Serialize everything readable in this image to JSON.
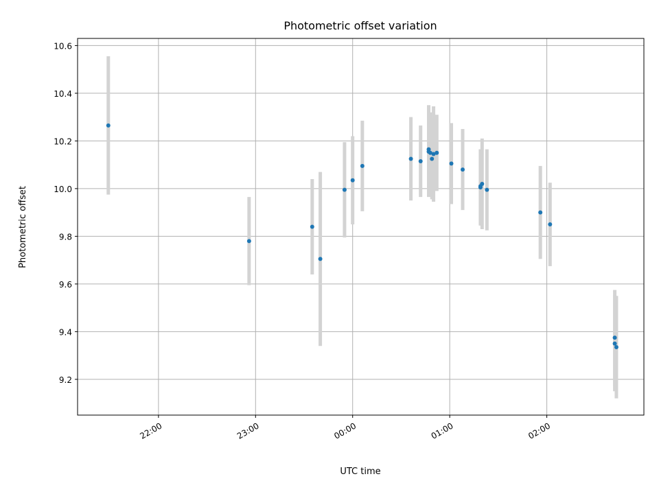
{
  "chart_data": {
    "type": "scatter",
    "title": "Photometric offset variation",
    "xlabel": "UTC time",
    "ylabel": "Photometric offset",
    "x_ticks": [
      "22:00",
      "23:00",
      "00:00",
      "01:00",
      "02:00"
    ],
    "y_ticks": [
      "9.2",
      "9.4",
      "9.6",
      "9.8",
      "10.0",
      "10.2",
      "10.4",
      "10.6"
    ],
    "xlim": [
      "21:10",
      "03:00"
    ],
    "ylim": [
      9.05,
      10.63
    ],
    "grid": true,
    "error_bar_color": "#d3d3d3",
    "point_color": "#1f77b4",
    "points": [
      {
        "x": "21:29",
        "y": 10.265,
        "err": 0.29
      },
      {
        "x": "22:56",
        "y": 9.78,
        "err": 0.185
      },
      {
        "x": "23:35",
        "y": 9.84,
        "err": 0.2
      },
      {
        "x": "23:40",
        "y": 9.705,
        "err": 0.365
      },
      {
        "x": "23:55",
        "y": 9.995,
        "err": 0.2
      },
      {
        "x": "00:00",
        "y": 10.035,
        "err": 0.185
      },
      {
        "x": "00:06",
        "y": 10.095,
        "err": 0.19
      },
      {
        "x": "00:36",
        "y": 10.125,
        "err": 0.175
      },
      {
        "x": "00:42",
        "y": 10.115,
        "err": 0.15
      },
      {
        "x": "00:47",
        "y": 10.165,
        "err": 0.185
      },
      {
        "x": "00:47",
        "y": 10.155,
        "err": 0.19
      },
      {
        "x": "00:48",
        "y": 10.15,
        "err": 0.17
      },
      {
        "x": "00:49",
        "y": 10.125,
        "err": 0.17
      },
      {
        "x": "00:50",
        "y": 10.145,
        "err": 0.2
      },
      {
        "x": "00:52",
        "y": 10.15,
        "err": 0.16
      },
      {
        "x": "01:01",
        "y": 10.105,
        "err": 0.17
      },
      {
        "x": "01:08",
        "y": 10.08,
        "err": 0.17
      },
      {
        "x": "01:19",
        "y": 10.005,
        "err": 0.16
      },
      {
        "x": "01:19",
        "y": 10.01,
        "err": 0.155
      },
      {
        "x": "01:20",
        "y": 10.02,
        "err": 0.19
      },
      {
        "x": "01:23",
        "y": 9.995,
        "err": 0.17
      },
      {
        "x": "01:56",
        "y": 9.9,
        "err": 0.195
      },
      {
        "x": "02:02",
        "y": 9.85,
        "err": 0.175
      },
      {
        "x": "02:42",
        "y": 9.375,
        "err": 0.2
      },
      {
        "x": "02:42",
        "y": 9.35,
        "err": 0.2
      },
      {
        "x": "02:43",
        "y": 9.335,
        "err": 0.215
      }
    ]
  }
}
